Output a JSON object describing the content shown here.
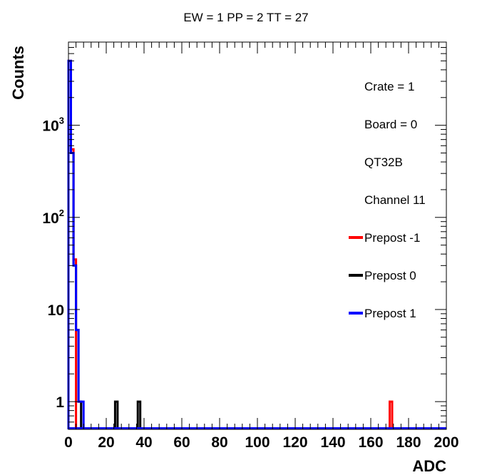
{
  "chart_data": {
    "type": "histogram",
    "title": "EW = 1 PP = 2 TT = 27",
    "xlabel": "ADC",
    "ylabel": "Counts",
    "x_range": [
      0,
      200
    ],
    "y_range": [
      0.5,
      8000
    ],
    "y_scale": "log",
    "bin_width": 1.333,
    "x_ticks": [
      0,
      20,
      40,
      60,
      80,
      100,
      120,
      140,
      160,
      180,
      200
    ],
    "x_tick_labels": [
      "0",
      "20",
      "40",
      "60",
      "80",
      "100",
      "120",
      "140",
      "160",
      "180",
      "200"
    ],
    "y_ticks": [
      {
        "value": 1,
        "label": "1",
        "exp": ""
      },
      {
        "value": 10,
        "label": "10",
        "exp": ""
      },
      {
        "value": 100,
        "label": "10",
        "exp": "2"
      },
      {
        "value": 1000,
        "label": "10",
        "exp": "3"
      }
    ],
    "grid": false,
    "legend_position": "right",
    "info_lines": [
      "Crate = 1",
      "Board = 0",
      "QT32B",
      "Channel 11"
    ],
    "series": [
      {
        "name": "Prepost -1",
        "color": "#ff0000",
        "bins": [
          [
            0.67,
            5000
          ],
          [
            2.0,
            550
          ],
          [
            3.33,
            35
          ],
          [
            170.67,
            1
          ]
        ]
      },
      {
        "name": "Prepost 0",
        "color": "#000000",
        "bins": [
          [
            0.67,
            5000
          ],
          [
            2.0,
            500
          ],
          [
            3.33,
            30
          ],
          [
            4.67,
            6
          ],
          [
            6.0,
            1
          ],
          [
            25.33,
            1
          ],
          [
            37.33,
            1
          ]
        ]
      },
      {
        "name": "Prepost 1",
        "color": "#0000ff",
        "bins": [
          [
            0.67,
            5000
          ],
          [
            2.0,
            500
          ],
          [
            3.33,
            30
          ],
          [
            4.67,
            6
          ],
          [
            6.0,
            1
          ],
          [
            7.33,
            1
          ]
        ]
      }
    ]
  }
}
